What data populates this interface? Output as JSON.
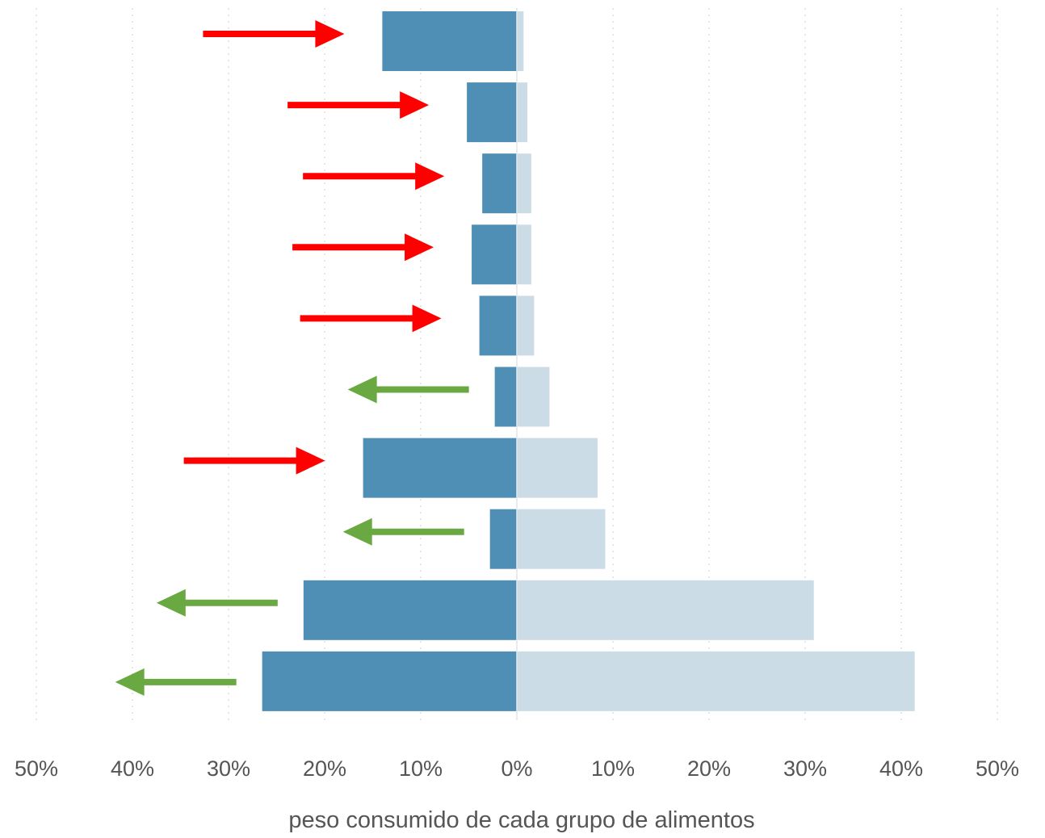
{
  "chart_data": {
    "type": "bar",
    "orientation": "horizontal-diverging",
    "xlabel": "peso consumido de cada grupo de alimentos",
    "ylabel": "",
    "title": "",
    "xlim": [
      -50,
      50
    ],
    "x_ticks": [
      -50,
      -40,
      -30,
      -20,
      -10,
      0,
      10,
      20,
      30,
      40,
      50
    ],
    "x_tick_labels": [
      "50%",
      "40%",
      "30%",
      "20%",
      "10%",
      "0%",
      "10%",
      "20%",
      "30%",
      "40%",
      "50%"
    ],
    "grid": "vertical dotted",
    "series": [
      {
        "values": [
          14,
          5.2,
          3.6,
          4.7,
          3.9,
          2.3,
          16,
          2.8,
          22.2,
          26.5
        ],
        "color": "#4f8fb5"
      },
      {
        "values": [
          0.7,
          1.1,
          1.5,
          1.5,
          1.8,
          3.4,
          8.4,
          9.2,
          30.9,
          41.4
        ],
        "color": "#ccdce7"
      }
    ],
    "annotations": [
      {
        "type": "arrow",
        "direction": "right",
        "color": "#ff0000"
      },
      {
        "type": "arrow",
        "direction": "right",
        "color": "#ff0000"
      },
      {
        "type": "arrow",
        "direction": "right",
        "color": "#ff0000"
      },
      {
        "type": "arrow",
        "direction": "right",
        "color": "#ff0000"
      },
      {
        "type": "arrow",
        "direction": "right",
        "color": "#ff0000"
      },
      {
        "type": "arrow",
        "direction": "left",
        "color": "#6aa842"
      },
      {
        "type": "arrow",
        "direction": "right",
        "color": "#ff0000"
      },
      {
        "type": "arrow",
        "direction": "left",
        "color": "#6aa842"
      },
      {
        "type": "arrow",
        "direction": "left",
        "color": "#6aa842"
      },
      {
        "type": "arrow",
        "direction": "left",
        "color": "#6aa842"
      }
    ]
  }
}
